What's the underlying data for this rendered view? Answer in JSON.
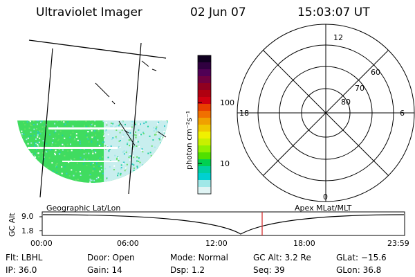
{
  "header": {
    "title": "Ultraviolet Imager",
    "date": "02 Jun 07",
    "time": "15:03:07 UT"
  },
  "map_panel": {
    "label": "Geographic Lat/Lon"
  },
  "colorbar": {
    "title": "photon cm⁻²s⁻¹",
    "ticks": [
      "100",
      "10"
    ],
    "colors": [
      "#100020",
      "#300040",
      "#500055",
      "#700040",
      "#900020",
      "#b00010",
      "#d00010",
      "#e84000",
      "#f07000",
      "#f0a000",
      "#f0c800",
      "#f0f000",
      "#c8f000",
      "#90f000",
      "#50e000",
      "#00d050",
      "#00d0a0",
      "#00d0d0",
      "#a0e8e8",
      "#e0f4f4"
    ]
  },
  "polar_plot": {
    "label": "Apex MLat/MLT",
    "mlt_labels": {
      "top": "12",
      "bottom": "0",
      "left": "18",
      "right": "6"
    },
    "mlat_labels": [
      "60",
      "70",
      "80"
    ]
  },
  "altitude_plot": {
    "ylabel": "GC Alt",
    "yticks": [
      "9.0",
      "1.8"
    ],
    "xticks": [
      "00:00",
      "06:00",
      "12:00",
      "18:00",
      "23:59"
    ],
    "marker_color": "#d02020"
  },
  "status": {
    "row1": [
      {
        "key": "Flt:",
        "val": "LBHL"
      },
      {
        "key": "Door:",
        "val": "Open"
      },
      {
        "key": "Mode:",
        "val": "Normal"
      },
      {
        "key": "GC Alt:",
        "val": "3.2 Re"
      },
      {
        "key": "GLat:",
        "val": "−15.6"
      }
    ],
    "row2": [
      {
        "key": "IP:",
        "val": "36.0"
      },
      {
        "key": "Gain:",
        "val": "14"
      },
      {
        "key": "Dsp:",
        "val": "1.2"
      },
      {
        "key": "Seq:",
        "val": "39"
      },
      {
        "key": "GLon:",
        "val": "36.8"
      }
    ]
  }
}
